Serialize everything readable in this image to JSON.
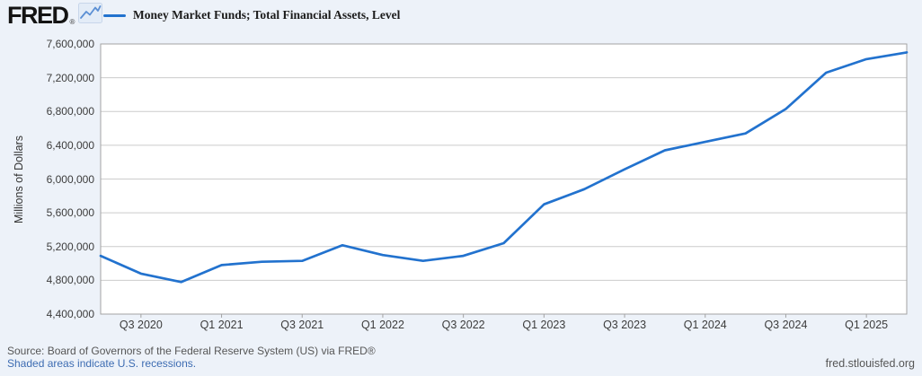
{
  "header": {
    "logo_text": "FRED",
    "logo_registered": "®",
    "legend_label": "Money Market Funds; Total Financial Assets, Level"
  },
  "chart_data": {
    "type": "line",
    "title": "Money Market Funds; Total Financial Assets, Level",
    "xlabel": "",
    "ylabel": "Millions of Dollars",
    "ylim": [
      4400000,
      7600000
    ],
    "y_tick_step": 400000,
    "grid": "horizontal",
    "legend_position": "top-left",
    "categories": [
      "Q2 2020",
      "Q3 2020",
      "Q4 2020",
      "Q1 2021",
      "Q2 2021",
      "Q3 2021",
      "Q4 2021",
      "Q1 2022",
      "Q2 2022",
      "Q3 2022",
      "Q4 2022",
      "Q1 2023",
      "Q2 2023",
      "Q3 2023",
      "Q4 2023",
      "Q1 2024",
      "Q2 2024",
      "Q3 2024",
      "Q4 2024",
      "Q1 2025",
      "Q2 2025"
    ],
    "values": [
      5090000,
      4880000,
      4780000,
      4980000,
      5020000,
      5030000,
      5215000,
      5100000,
      5030000,
      5090000,
      5240000,
      5700000,
      5880000,
      6115000,
      6340000,
      6440000,
      6540000,
      6830000,
      7260000,
      7420000,
      7500000
    ],
    "x_ticks": [
      {
        "index": 1,
        "label": "Q3 2020"
      },
      {
        "index": 3,
        "label": "Q1 2021"
      },
      {
        "index": 5,
        "label": "Q3 2021"
      },
      {
        "index": 7,
        "label": "Q1 2022"
      },
      {
        "index": 9,
        "label": "Q3 2022"
      },
      {
        "index": 11,
        "label": "Q1 2023"
      },
      {
        "index": 13,
        "label": "Q3 2023"
      },
      {
        "index": 15,
        "label": "Q1 2024"
      },
      {
        "index": 17,
        "label": "Q3 2024"
      },
      {
        "index": 19,
        "label": "Q1 2025"
      }
    ],
    "y_tick_labels": [
      "4,400,000",
      "4,800,000",
      "5,200,000",
      "5,600,000",
      "6,000,000",
      "6,400,000",
      "6,800,000",
      "7,200,000",
      "7,600,000"
    ]
  },
  "footer": {
    "source": "Source: Board of Governors of the Federal Reserve System (US) via FRED®",
    "recession_note": "Shaded areas indicate U.S. recessions.",
    "site": "fred.stlouisfed.org"
  },
  "colors": {
    "line": "#2272ce",
    "background": "#edf2f9",
    "plot_background": "#ffffff",
    "gridline": "#cccccc",
    "axis_border": "#a3a3a3",
    "link": "#3d6cb2",
    "logo_icon_line": "#5b8fd4",
    "logo_icon_background": "#e3ecf7"
  }
}
